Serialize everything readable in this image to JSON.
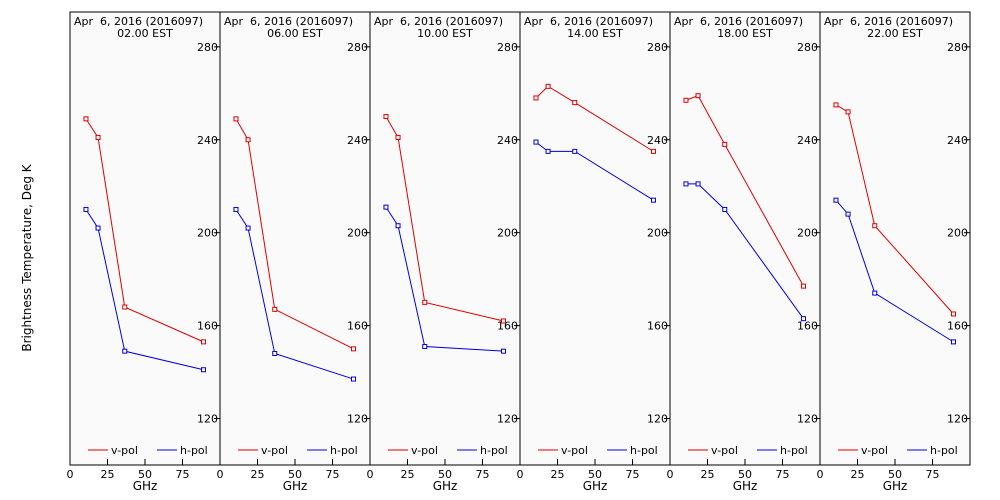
{
  "ylabel": "Brightness Temperature, Deg K",
  "xlabel": "GHz",
  "ylim": [
    100,
    295
  ],
  "xlim": [
    0,
    100
  ],
  "yticks": [
    "120",
    "160",
    "200",
    "240",
    "280"
  ],
  "xticks": [
    "0",
    "25",
    "50",
    "75"
  ],
  "colors": {
    "v": "#e00000",
    "h": "#0000e0"
  },
  "legend": {
    "v": "v-pol",
    "h": "h-pol"
  },
  "chart_data": [
    {
      "type": "line",
      "title": "Apr  6, 2016 (2016097)",
      "subtitle": "02.00 EST",
      "series": [
        {
          "name": "v-pol",
          "x": [
            10.65,
            18.7,
            36.5,
            89
          ],
          "values": [
            249,
            241,
            168,
            153
          ]
        },
        {
          "name": "h-pol",
          "x": [
            10.65,
            18.7,
            36.5,
            89
          ],
          "values": [
            210,
            202,
            149,
            141
          ]
        }
      ]
    },
    {
      "type": "line",
      "title": "Apr  6, 2016 (2016097)",
      "subtitle": "06.00 EST",
      "series": [
        {
          "name": "v-pol",
          "x": [
            10.65,
            18.7,
            36.5,
            89
          ],
          "values": [
            249,
            240,
            167,
            150
          ]
        },
        {
          "name": "h-pol",
          "x": [
            10.65,
            18.7,
            36.5,
            89
          ],
          "values": [
            210,
            202,
            148,
            137
          ]
        }
      ]
    },
    {
      "type": "line",
      "title": "Apr  6, 2016 (2016097)",
      "subtitle": "10.00 EST",
      "series": [
        {
          "name": "v-pol",
          "x": [
            10.65,
            18.7,
            36.5,
            89
          ],
          "values": [
            250,
            241,
            170,
            162
          ]
        },
        {
          "name": "h-pol",
          "x": [
            10.65,
            18.7,
            36.5,
            89
          ],
          "values": [
            211,
            203,
            151,
            149
          ]
        }
      ]
    },
    {
      "type": "line",
      "title": "Apr  6, 2016 (2016097)",
      "subtitle": "14.00 EST",
      "series": [
        {
          "name": "v-pol",
          "x": [
            10.65,
            18.7,
            36.5,
            89
          ],
          "values": [
            258,
            263,
            256,
            235
          ]
        },
        {
          "name": "h-pol",
          "x": [
            10.65,
            18.7,
            36.5,
            89
          ],
          "values": [
            239,
            235,
            235,
            214
          ]
        }
      ]
    },
    {
      "type": "line",
      "title": "Apr  6, 2016 (2016097)",
      "subtitle": "18.00 EST",
      "series": [
        {
          "name": "v-pol",
          "x": [
            10.65,
            18.7,
            36.5,
            89
          ],
          "values": [
            257,
            259,
            238,
            177
          ]
        },
        {
          "name": "h-pol",
          "x": [
            10.65,
            18.7,
            36.5,
            89
          ],
          "values": [
            221,
            221,
            210,
            163
          ]
        }
      ]
    },
    {
      "type": "line",
      "title": "Apr  6, 2016 (2016097)",
      "subtitle": "22.00 EST",
      "series": [
        {
          "name": "v-pol",
          "x": [
            10.65,
            18.7,
            36.5,
            89
          ],
          "values": [
            255,
            252,
            203,
            165
          ]
        },
        {
          "name": "h-pol",
          "x": [
            10.65,
            18.7,
            36.5,
            89
          ],
          "values": [
            214,
            208,
            174,
            153
          ]
        }
      ]
    }
  ]
}
